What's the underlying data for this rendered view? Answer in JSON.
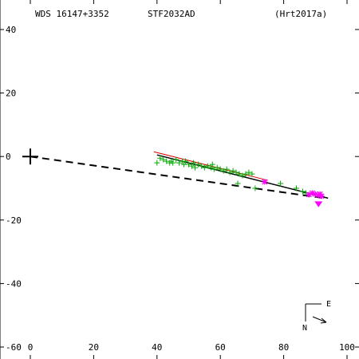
{
  "header": {
    "left": "WDS 16147+3352",
    "center": "STF2032AD",
    "right": "(Hrt2017a)"
  },
  "compass": {
    "north": "N",
    "east": "E"
  },
  "chart_data": {
    "type": "scatter",
    "xlim": [
      0,
      100
    ],
    "ylim": [
      -60,
      40
    ],
    "x_ticks": [
      0,
      20,
      40,
      60,
      80,
      100
    ],
    "x_tick_labels": [
      "0",
      "20",
      "40",
      "60",
      "80",
      "100"
    ],
    "y_ticks": [
      -60,
      -40,
      -20,
      0,
      20,
      40
    ],
    "y_tick_labels": [
      "-60",
      "-40",
      "-20",
      "0",
      "20",
      "40"
    ],
    "primary_marker": [
      0,
      0
    ],
    "dashed_line": [
      [
        0,
        0
      ],
      [
        92,
        -13
      ]
    ],
    "fit_line_black": [
      [
        40,
        0.5
      ],
      [
        94,
        -13.1
      ]
    ],
    "fit_line_red": [
      [
        39,
        1.5
      ],
      [
        75,
        -7.5
      ]
    ],
    "series": [
      {
        "marker": "plus",
        "color": "#00aa00",
        "points": [
          [
            40,
            -2
          ],
          [
            41,
            -0.5
          ],
          [
            42,
            -1
          ],
          [
            43,
            -1.5
          ],
          [
            44,
            -2
          ],
          [
            44.5,
            -1.5
          ],
          [
            45,
            -2
          ],
          [
            46,
            -1
          ],
          [
            47,
            -2
          ],
          [
            48,
            -1.5
          ],
          [
            48.5,
            -2.5
          ],
          [
            49,
            -1.5
          ],
          [
            50,
            -2.5
          ],
          [
            51,
            -3
          ],
          [
            51.5,
            -2
          ],
          [
            52,
            -3.5
          ],
          [
            53,
            -2.5
          ],
          [
            54,
            -3
          ],
          [
            55,
            -3.5
          ],
          [
            56,
            -3
          ],
          [
            57,
            -3.5
          ],
          [
            57.5,
            -2.5
          ],
          [
            58,
            -4
          ],
          [
            59,
            -3.5
          ],
          [
            60,
            -4
          ],
          [
            61,
            -4.5
          ],
          [
            62,
            -4
          ],
          [
            63,
            -5
          ],
          [
            64,
            -4.5
          ],
          [
            65,
            -5
          ],
          [
            65.5,
            -8.5
          ],
          [
            66,
            -5.5
          ],
          [
            67,
            -6
          ],
          [
            68,
            -5.5
          ],
          [
            69,
            -5
          ],
          [
            70,
            -5.5
          ],
          [
            71,
            -10
          ],
          [
            79,
            -8.5
          ],
          [
            84,
            -10
          ],
          [
            86,
            -11
          ],
          [
            87,
            -11.5
          ]
        ]
      },
      {
        "marker": "asterisk",
        "color": "#ff00ff",
        "points": [
          [
            74,
            -8
          ],
          [
            88,
            -12
          ],
          [
            89,
            -11.5
          ],
          [
            90,
            -11.8
          ],
          [
            91,
            -12.2
          ],
          [
            91.5,
            -11.8
          ],
          [
            92,
            -12.5
          ]
        ]
      },
      {
        "marker": "triangle",
        "color": "#ff00ff",
        "points": [
          [
            91,
            -15
          ]
        ]
      }
    ]
  }
}
